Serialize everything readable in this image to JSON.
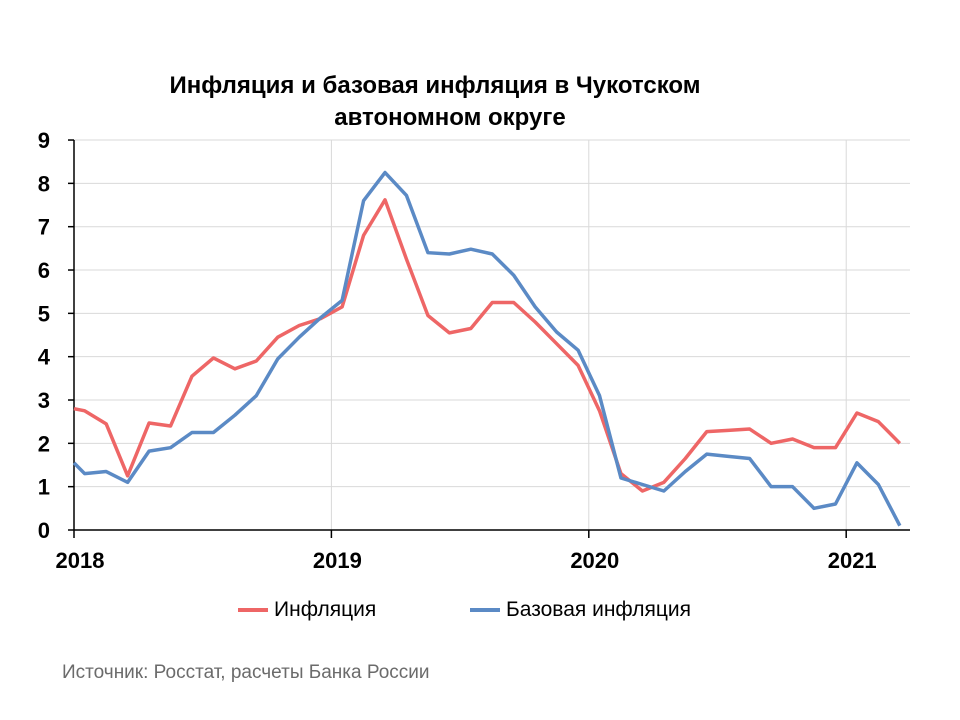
{
  "chart_data": {
    "type": "line",
    "title": [
      "Инфляция и базовая инфляция в Чукотском",
      "автономном округе"
    ],
    "xlabel": "",
    "ylabel": "",
    "ylim": [
      0,
      9
    ],
    "yticks": [
      "0",
      "1",
      "2",
      "3",
      "4",
      "5",
      "6",
      "7",
      "8",
      "9"
    ],
    "xticks": [
      {
        "label": "2018",
        "month": 0
      },
      {
        "label": "2019",
        "month": 12
      },
      {
        "label": "2020",
        "month": 24
      },
      {
        "label": "2021",
        "month": 36
      }
    ],
    "xlim_months": [
      0,
      39
    ],
    "grid": true,
    "legend_position": "bottom",
    "x_months": [
      0.5,
      1.5,
      2.5,
      3.5,
      4.5,
      5.5,
      6.5,
      7.5,
      8.5,
      9.5,
      10.5,
      11.5,
      12.5,
      13.5,
      14.5,
      15.5,
      16.5,
      17.5,
      18.5,
      19.5,
      20.5,
      21.5,
      22.5,
      23.5,
      24.5,
      25.5,
      26.5,
      27.5,
      28.5,
      29.5,
      30.5,
      31.5,
      32.5,
      33.5,
      34.5,
      35.5,
      36.5,
      37.5,
      38.5
    ],
    "series": [
      {
        "name": "Инфляция",
        "color": "#EE6666",
        "start_value": 2.8,
        "values": [
          2.75,
          2.45,
          1.25,
          2.47,
          2.4,
          3.55,
          3.97,
          3.72,
          3.9,
          4.45,
          4.72,
          4.88,
          5.15,
          6.8,
          7.62,
          6.25,
          4.95,
          4.55,
          4.65,
          5.25,
          5.25,
          4.8,
          4.3,
          3.8,
          2.75,
          1.3,
          0.9,
          1.1,
          1.65,
          2.27,
          2.3,
          2.33,
          2.0,
          2.1,
          1.9,
          1.9,
          2.7,
          2.5,
          2.0
        ]
      },
      {
        "name": "Базовая инфляция",
        "color": "#5B8AC5",
        "start_value": 1.55,
        "values": [
          1.3,
          1.35,
          1.1,
          1.82,
          1.9,
          2.25,
          2.25,
          2.65,
          3.1,
          3.95,
          4.45,
          4.9,
          5.3,
          7.6,
          8.25,
          7.72,
          6.4,
          6.37,
          6.48,
          6.37,
          5.88,
          5.15,
          4.57,
          4.15,
          3.1,
          1.2,
          1.05,
          0.9,
          1.35,
          1.75,
          1.7,
          1.65,
          1.0,
          1.0,
          0.5,
          0.6,
          1.55,
          1.05,
          0.1
        ]
      }
    ]
  },
  "source": "Источник: Росстат, расчеты Банка России"
}
